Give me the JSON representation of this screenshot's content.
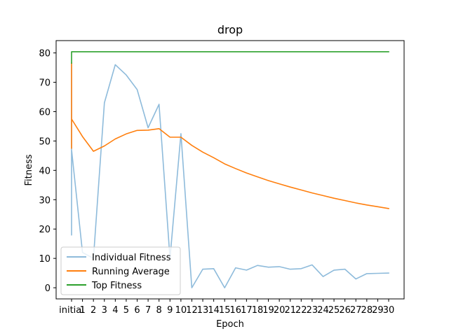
{
  "chart_data": {
    "type": "line",
    "title": "drop",
    "xlabel": "Epoch",
    "ylabel": "Fitness",
    "ylim": [
      -3.8,
      84.2
    ],
    "yticks": [
      0,
      10,
      20,
      30,
      40,
      50,
      60,
      70,
      80
    ],
    "x_tick_labels": [
      "initial",
      "1",
      "2",
      "3",
      "4",
      "5",
      "6",
      "7",
      "8",
      "9",
      "10",
      "12",
      "13",
      "14",
      "15",
      "16",
      "17",
      "18",
      "19",
      "20",
      "21",
      "22",
      "23",
      "24",
      "25",
      "26",
      "27",
      "28",
      "29",
      "30"
    ],
    "legend": {
      "position": "lower-left"
    },
    "series": [
      {
        "name": "Individual Fitness",
        "color": "#8ebbdb",
        "initial_values": [
          18,
          76,
          20,
          47
        ],
        "values": [
          12,
          10,
          63,
          76,
          72.5,
          67.5,
          54.5,
          62.5,
          10,
          52.5,
          0,
          6.3,
          6.5,
          0,
          6.8,
          6,
          7.6,
          7,
          7.2,
          6.3,
          6.5,
          7.8,
          3.8,
          6,
          6.3,
          3,
          4.8,
          4.9,
          5
        ]
      },
      {
        "name": "Running Average",
        "color": "#ff7f0e",
        "initial_values": [
          76.5,
          47.5,
          57.5
        ],
        "values": [
          51.5,
          46.5,
          48.3,
          50.7,
          52.4,
          53.6,
          53.7,
          54.2,
          51.3,
          51.3,
          48.5,
          46.2,
          44.3,
          42.2,
          40.6,
          39.1,
          37.8,
          36.5,
          35.4,
          34.3,
          33.3,
          32.3,
          31.4,
          30.5,
          29.7,
          28.9,
          28.2,
          27.6,
          27
        ]
      },
      {
        "name": "Top Fitness",
        "color": "#2ca02c",
        "initial_values": [
          76.5,
          80.4
        ],
        "values": [
          80.4,
          80.4,
          80.4,
          80.4,
          80.4,
          80.4,
          80.4,
          80.4,
          80.4,
          80.4,
          80.4,
          80.4,
          80.4,
          80.4,
          80.4,
          80.4,
          80.4,
          80.4,
          80.4,
          80.4,
          80.4,
          80.4,
          80.4,
          80.4,
          80.4,
          80.4,
          80.4,
          80.4,
          80.4
        ]
      }
    ]
  }
}
